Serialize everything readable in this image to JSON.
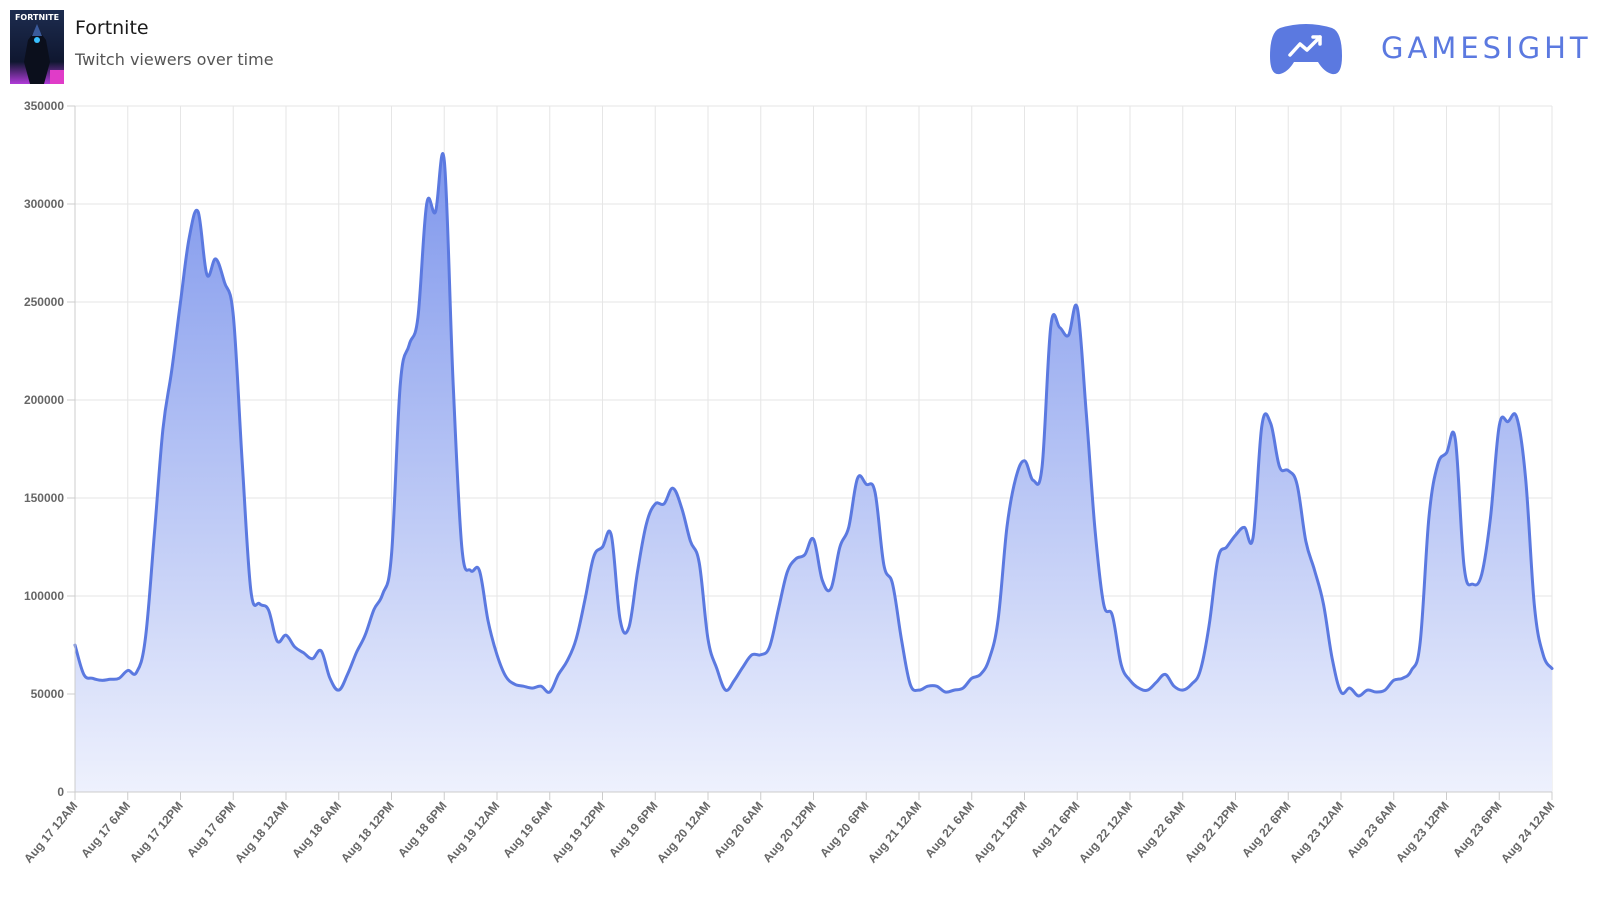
{
  "header": {
    "title": "Fortnite",
    "subtitle": "Twitch viewers over time",
    "thumb_text": "FORTNITE",
    "brand": "GAMESIGHT"
  },
  "colors": {
    "line": "#5b79e0",
    "fill_top": "#7f97ec",
    "fill_bottom": "#eef1fd",
    "grid": "#e6e6e6",
    "brand": "#5b79e0"
  },
  "icons": [
    "game-cover-icon",
    "gamesight-controller-logo-icon"
  ],
  "chart_data": {
    "type": "area",
    "title": "",
    "xlabel": "",
    "ylabel": "",
    "ylim": [
      0,
      350000
    ],
    "yticks": [
      "0",
      "50000",
      "100000",
      "150000",
      "200000",
      "250000",
      "300000",
      "350000"
    ],
    "xlim_hours": [
      0,
      168
    ],
    "xticks": [
      "Aug 17 12AM",
      "Aug 17 6AM",
      "Aug 17 12PM",
      "Aug 17 6PM",
      "Aug 18 12AM",
      "Aug 18 6AM",
      "Aug 18 12PM",
      "Aug 18 6PM",
      "Aug 19 12AM",
      "Aug 19 6AM",
      "Aug 19 12PM",
      "Aug 19 6PM",
      "Aug 20 12AM",
      "Aug 20 6AM",
      "Aug 20 12PM",
      "Aug 20 6PM",
      "Aug 21 12AM",
      "Aug 21 6AM",
      "Aug 21 12PM",
      "Aug 21 6PM",
      "Aug 22 12AM",
      "Aug 22 6AM",
      "Aug 22 12PM",
      "Aug 22 6PM",
      "Aug 23 12AM",
      "Aug 23 6AM",
      "Aug 23 12PM",
      "Aug 23 6PM",
      "Aug 24 12AM"
    ],
    "grid": true,
    "legend": "none",
    "series": [
      {
        "points": [
          [
            0,
            75000
          ],
          [
            1,
            60000
          ],
          [
            2,
            58000
          ],
          [
            3,
            57000
          ],
          [
            4,
            57500
          ],
          [
            5,
            58000
          ],
          [
            6,
            62000
          ],
          [
            7,
            61000
          ],
          [
            8,
            78000
          ],
          [
            9,
            130000
          ],
          [
            10,
            185000
          ],
          [
            11,
            215000
          ],
          [
            12,
            250000
          ],
          [
            13,
            283000
          ],
          [
            14,
            296000
          ],
          [
            15,
            264000
          ],
          [
            16,
            272000
          ],
          [
            17,
            260000
          ],
          [
            18,
            243000
          ],
          [
            19,
            170000
          ],
          [
            20,
            103000
          ],
          [
            21,
            96000
          ],
          [
            22,
            93000
          ],
          [
            23,
            77000
          ],
          [
            24,
            80000
          ],
          [
            25,
            74000
          ],
          [
            26,
            71000
          ],
          [
            27,
            68000
          ],
          [
            28,
            72000
          ],
          [
            29,
            58000
          ],
          [
            30,
            52000
          ],
          [
            31,
            60000
          ],
          [
            32,
            71000
          ],
          [
            33,
            80000
          ],
          [
            34,
            93000
          ],
          [
            35,
            101000
          ],
          [
            36,
            121000
          ],
          [
            37,
            208000
          ],
          [
            38,
            228000
          ],
          [
            39,
            242000
          ],
          [
            40,
            300000
          ],
          [
            41,
            296000
          ],
          [
            42,
            322000
          ],
          [
            43,
            210000
          ],
          [
            44,
            125000
          ],
          [
            45,
            113000
          ],
          [
            46,
            113000
          ],
          [
            47,
            87000
          ],
          [
            48,
            70000
          ],
          [
            49,
            59000
          ],
          [
            50,
            55000
          ],
          [
            51,
            54000
          ],
          [
            52,
            53000
          ],
          [
            53,
            54000
          ],
          [
            54,
            51000
          ],
          [
            55,
            60000
          ],
          [
            56,
            67000
          ],
          [
            57,
            78000
          ],
          [
            58,
            98000
          ],
          [
            59,
            120000
          ],
          [
            60,
            125000
          ],
          [
            61,
            131000
          ],
          [
            62,
            88000
          ],
          [
            63,
            84000
          ],
          [
            64,
            113000
          ],
          [
            65,
            137000
          ],
          [
            66,
            147000
          ],
          [
            67,
            147000
          ],
          [
            68,
            155000
          ],
          [
            69,
            145000
          ],
          [
            70,
            128000
          ],
          [
            71,
            117000
          ],
          [
            72,
            78000
          ],
          [
            73,
            63000
          ],
          [
            74,
            52000
          ],
          [
            75,
            57000
          ],
          [
            76,
            64000
          ],
          [
            77,
            70000
          ],
          [
            78,
            70000
          ],
          [
            79,
            74000
          ],
          [
            80,
            93000
          ],
          [
            81,
            112000
          ],
          [
            82,
            119000
          ],
          [
            83,
            121000
          ],
          [
            84,
            129000
          ],
          [
            85,
            108000
          ],
          [
            86,
            104000
          ],
          [
            87,
            125000
          ],
          [
            88,
            135000
          ],
          [
            89,
            160000
          ],
          [
            90,
            157000
          ],
          [
            91,
            153000
          ],
          [
            92,
            116000
          ],
          [
            93,
            106000
          ],
          [
            94,
            78000
          ],
          [
            95,
            55000
          ],
          [
            96,
            52000
          ],
          [
            97,
            54000
          ],
          [
            98,
            54000
          ],
          [
            99,
            51000
          ],
          [
            100,
            52000
          ],
          [
            101,
            53000
          ],
          [
            102,
            58000
          ],
          [
            103,
            60000
          ],
          [
            104,
            68000
          ],
          [
            105,
            88000
          ],
          [
            106,
            135000
          ],
          [
            107,
            160000
          ],
          [
            108,
            169000
          ],
          [
            109,
            159000
          ],
          [
            110,
            166000
          ],
          [
            111,
            238000
          ],
          [
            112,
            237000
          ],
          [
            113,
            233000
          ],
          [
            114,
            247000
          ],
          [
            115,
            195000
          ],
          [
            116,
            135000
          ],
          [
            117,
            96000
          ],
          [
            118,
            90000
          ],
          [
            119,
            65000
          ],
          [
            120,
            57000
          ],
          [
            121,
            53000
          ],
          [
            122,
            52000
          ],
          [
            123,
            56000
          ],
          [
            124,
            60000
          ],
          [
            125,
            54000
          ],
          [
            126,
            52000
          ],
          [
            127,
            55000
          ],
          [
            128,
            62000
          ],
          [
            129,
            85000
          ],
          [
            130,
            119000
          ],
          [
            131,
            125000
          ],
          [
            132,
            131000
          ],
          [
            133,
            135000
          ],
          [
            134,
            130000
          ],
          [
            135,
            187000
          ],
          [
            136,
            188000
          ],
          [
            137,
            166000
          ],
          [
            138,
            164000
          ],
          [
            139,
            157000
          ],
          [
            140,
            128000
          ],
          [
            141,
            113000
          ],
          [
            142,
            96000
          ],
          [
            143,
            68000
          ],
          [
            144,
            51000
          ],
          [
            145,
            53000
          ],
          [
            146,
            49000
          ],
          [
            147,
            52000
          ],
          [
            148,
            51000
          ],
          [
            149,
            52000
          ],
          [
            150,
            57000
          ],
          [
            151,
            58000
          ],
          [
            152,
            62000
          ],
          [
            153,
            76000
          ],
          [
            154,
            140000
          ],
          [
            155,
            167000
          ],
          [
            156,
            173000
          ],
          [
            157,
            180000
          ],
          [
            158,
            115000
          ],
          [
            159,
            106000
          ],
          [
            160,
            111000
          ],
          [
            161,
            140000
          ],
          [
            162,
            187000
          ],
          [
            163,
            189000
          ],
          [
            164,
            191000
          ],
          [
            165,
            160000
          ],
          [
            166,
            95000
          ],
          [
            167,
            70000
          ],
          [
            168,
            63000
          ]
        ]
      }
    ]
  }
}
